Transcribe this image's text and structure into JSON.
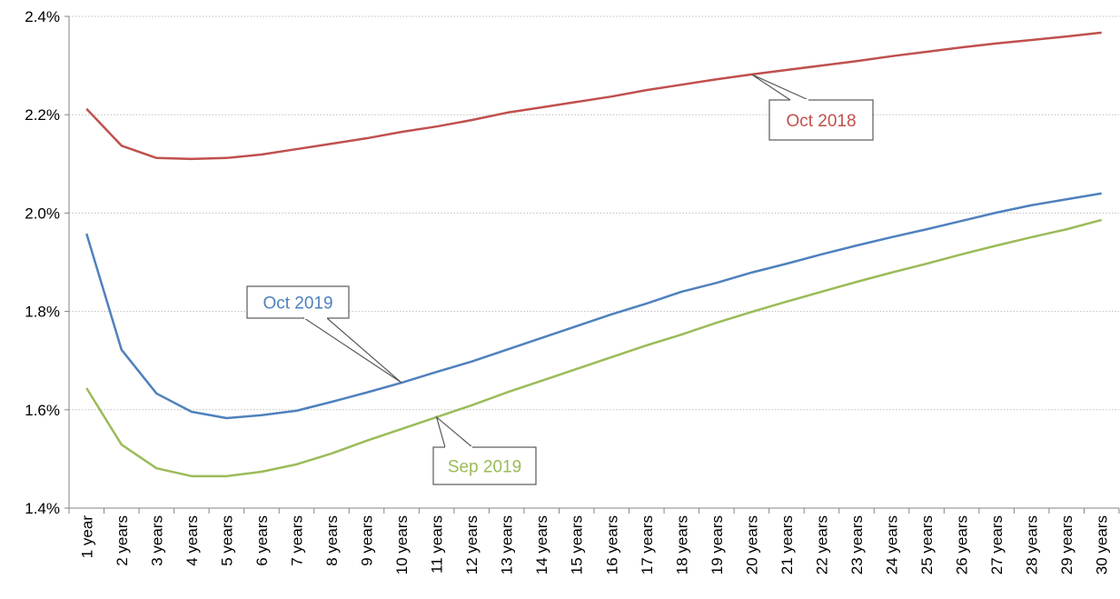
{
  "chart_data": {
    "type": "line",
    "categories": [
      "1 year",
      "2 years",
      "3 years",
      "4 years",
      "5 years",
      "6 years",
      "7 years",
      "8 years",
      "9 years",
      "10 years",
      "11 years",
      "12 years",
      "13 years",
      "14 years",
      "15 years",
      "16 years",
      "17 years",
      "18 years",
      "19 years",
      "20 years",
      "21 years",
      "22 years",
      "23 years",
      "24 years",
      "25 years",
      "26 years",
      "27 years",
      "28 years",
      "29 years",
      "30 years"
    ],
    "series": [
      {
        "name": "Oct 2018",
        "color": "#c0504d",
        "values": [
          2.212,
          2.137,
          2.112,
          2.11,
          2.112,
          2.119,
          2.13,
          2.141,
          2.152,
          2.165,
          2.176,
          2.189,
          2.204,
          2.215,
          2.226,
          2.237,
          2.25,
          2.261,
          2.272,
          2.282,
          2.291,
          2.3,
          2.309,
          2.319,
          2.328,
          2.337,
          2.345,
          2.352,
          2.359,
          2.367
        ]
      },
      {
        "name": "Oct 2019",
        "color": "#4f81bd",
        "values": [
          1.958,
          1.722,
          1.633,
          1.596,
          1.583,
          1.589,
          1.598,
          1.616,
          1.635,
          1.655,
          1.677,
          1.698,
          1.722,
          1.746,
          1.77,
          1.794,
          1.816,
          1.84,
          1.858,
          1.879,
          1.897,
          1.916,
          1.934,
          1.951,
          1.967,
          1.984,
          2.001,
          2.016,
          2.028,
          2.04
        ]
      },
      {
        "name": "Sep 2019",
        "color": "#9bbb59",
        "values": [
          1.644,
          1.529,
          1.481,
          1.465,
          1.465,
          1.474,
          1.489,
          1.511,
          1.537,
          1.561,
          1.585,
          1.609,
          1.635,
          1.659,
          1.683,
          1.707,
          1.731,
          1.753,
          1.777,
          1.799,
          1.82,
          1.84,
          1.86,
          1.879,
          1.897,
          1.916,
          1.934,
          1.951,
          1.967,
          1.986
        ]
      }
    ],
    "ylim": [
      1.4,
      2.4
    ],
    "yticks": [
      {
        "value": 1.4,
        "label": "1.4%"
      },
      {
        "value": 1.6,
        "label": "1.6%"
      },
      {
        "value": 1.8,
        "label": "1.8%"
      },
      {
        "value": 2.0,
        "label": "2.0%"
      },
      {
        "value": 2.2,
        "label": "2.2%"
      },
      {
        "value": 2.4,
        "label": "2.4%"
      }
    ],
    "grid": true
  }
}
